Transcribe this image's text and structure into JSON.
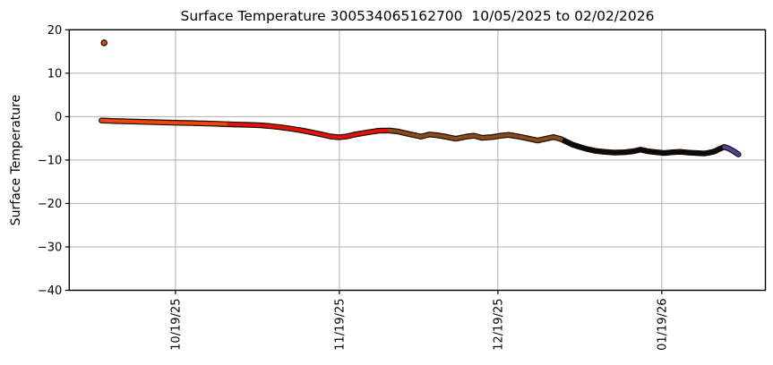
{
  "figure": {
    "background": "#ffffff"
  },
  "chart_data": {
    "type": "scatter",
    "title": "Surface Temperature 300534065162700  10/05/2025 to 02/02/2026",
    "xlabel": "",
    "ylabel": "Surface Temperature",
    "ylim": [
      -40,
      20
    ],
    "yticks": [
      20,
      10,
      0,
      -10,
      -20,
      -30,
      -40
    ],
    "x_axis": {
      "start_date": "10/05/2025",
      "end_date": "02/02/2026",
      "epoch_day_zero": "10/05/2025",
      "domain_days": [
        -6.1,
        125.6
      ]
    },
    "xticks": [
      {
        "day": 14,
        "label": "10/19/25"
      },
      {
        "day": 45,
        "label": "11/19/25"
      },
      {
        "day": 75,
        "label": "12/19/25"
      },
      {
        "day": 106,
        "label": "01/19/26"
      }
    ],
    "grid": true,
    "styles": {
      "grid_color": "#b0b0b0",
      "axis_color": "#000000",
      "marker_edge_color": "#1a0c00",
      "plot_background": "#ffffff"
    },
    "outlier_point": {
      "day": 0.5,
      "value": 17.0,
      "color": "#e8430f"
    },
    "series_segments": [
      {
        "name": "early-october-orange",
        "color": "#ef4410",
        "points": [
          [
            0,
            -0.9
          ],
          [
            2,
            -1.0
          ],
          [
            5,
            -1.1
          ],
          [
            8,
            -1.2
          ],
          [
            11,
            -1.3
          ],
          [
            14,
            -1.4
          ],
          [
            17,
            -1.5
          ],
          [
            20,
            -1.6
          ],
          [
            22,
            -1.65
          ],
          [
            24,
            -1.75
          ]
        ]
      },
      {
        "name": "november-red",
        "color": "#e21208",
        "points": [
          [
            24,
            -1.75
          ],
          [
            26,
            -1.85
          ],
          [
            28,
            -1.9
          ],
          [
            30,
            -2.0
          ],
          [
            32,
            -2.2
          ],
          [
            34,
            -2.45
          ],
          [
            36,
            -2.8
          ],
          [
            38,
            -3.2
          ],
          [
            40,
            -3.7
          ],
          [
            42,
            -4.2
          ],
          [
            43.5,
            -4.6
          ],
          [
            45,
            -4.75
          ],
          [
            46.5,
            -4.55
          ],
          [
            48,
            -4.1
          ],
          [
            49.5,
            -3.8
          ],
          [
            51,
            -3.5
          ],
          [
            52.5,
            -3.25
          ],
          [
            54.5,
            -3.2
          ]
        ]
      },
      {
        "name": "december-brown",
        "color": "#8a4a1e",
        "points": [
          [
            54.5,
            -3.2
          ],
          [
            56,
            -3.4
          ],
          [
            57,
            -3.7
          ],
          [
            58.5,
            -4.1
          ],
          [
            60.5,
            -4.6
          ],
          [
            62,
            -4.1
          ],
          [
            63.5,
            -4.3
          ],
          [
            65.5,
            -4.7
          ],
          [
            67,
            -5.1
          ],
          [
            69,
            -4.6
          ],
          [
            70.5,
            -4.4
          ],
          [
            72,
            -4.9
          ],
          [
            74,
            -4.7
          ],
          [
            75.5,
            -4.4
          ],
          [
            77,
            -4.2
          ],
          [
            79,
            -4.6
          ],
          [
            81,
            -5.1
          ],
          [
            82.5,
            -5.5
          ],
          [
            84,
            -5.1
          ],
          [
            85.5,
            -4.7
          ],
          [
            87,
            -5.2
          ],
          [
            87.5,
            -5.5
          ]
        ]
      },
      {
        "name": "january-black",
        "color": "#0b0b0b",
        "points": [
          [
            87.5,
            -5.5
          ],
          [
            89,
            -6.4
          ],
          [
            90.5,
            -7.0
          ],
          [
            92,
            -7.5
          ],
          [
            93.5,
            -7.9
          ],
          [
            95,
            -8.1
          ],
          [
            97,
            -8.3
          ],
          [
            99,
            -8.2
          ],
          [
            100.5,
            -8.0
          ],
          [
            102,
            -7.6
          ],
          [
            103.5,
            -8.0
          ],
          [
            105,
            -8.2
          ],
          [
            106.5,
            -8.4
          ],
          [
            108,
            -8.2
          ],
          [
            109.5,
            -8.1
          ],
          [
            111,
            -8.3
          ],
          [
            112.5,
            -8.4
          ],
          [
            114,
            -8.5
          ],
          [
            115,
            -8.3
          ],
          [
            116,
            -8.0
          ],
          [
            117,
            -7.4
          ],
          [
            117.8,
            -7.0
          ]
        ]
      },
      {
        "name": "early-february-blue",
        "color": "#4e4396",
        "points": [
          [
            117.8,
            -7.0
          ],
          [
            118.6,
            -7.3
          ],
          [
            119.5,
            -7.9
          ],
          [
            120.5,
            -8.7
          ]
        ]
      }
    ]
  }
}
